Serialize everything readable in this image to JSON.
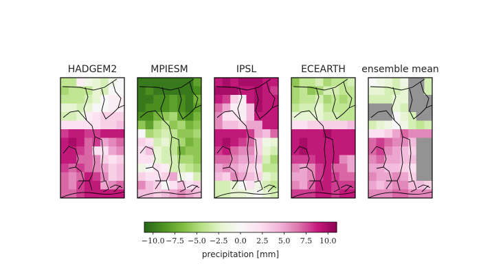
{
  "chart_data": {
    "type": "heatmap",
    "grid": {
      "rows": 14,
      "cols": 8
    },
    "panels": [
      {
        "title": "HADGEM2",
        "values": [
          [
            -4,
            -4,
            1,
            -1,
            -2,
            -3,
            -1,
            0
          ],
          [
            -5,
            -4,
            -4,
            -4,
            -2,
            -3,
            0,
            0
          ],
          [
            -4,
            -4,
            -4,
            -3,
            -2,
            0,
            1,
            1
          ],
          [
            -2,
            -2,
            -3,
            -2,
            0,
            0,
            1,
            1
          ],
          [
            -3,
            -3,
            -2,
            1,
            2,
            3,
            3,
            3
          ],
          [
            2,
            2,
            2,
            2,
            2,
            3,
            3,
            4
          ],
          [
            8,
            9,
            9,
            8,
            8,
            9,
            9,
            9
          ],
          [
            9,
            10,
            9,
            7,
            8,
            5,
            6,
            7
          ],
          [
            9,
            9,
            8,
            7,
            2,
            2,
            5,
            6
          ],
          [
            9,
            9,
            7,
            7,
            6,
            3,
            2,
            3
          ],
          [
            8,
            7,
            8,
            7,
            6,
            5,
            3,
            4
          ],
          [
            7,
            6,
            7,
            9,
            8,
            6,
            3,
            4
          ],
          [
            7,
            6,
            8,
            9,
            9,
            5,
            6,
            7
          ],
          [
            7,
            7,
            8,
            9,
            9,
            9,
            9,
            9
          ]
        ]
      },
      {
        "title": "MPIESM",
        "values": [
          [
            -10,
            -10,
            -10,
            -10,
            -10,
            -10,
            -10,
            -8
          ],
          [
            -10,
            -9,
            -10,
            -10,
            -10,
            -10,
            -10,
            -9
          ],
          [
            -10,
            -10,
            -9,
            -9,
            -8,
            -9,
            -10,
            -7
          ],
          [
            -10,
            -9,
            -9,
            -9,
            -8,
            -9,
            -10,
            -8
          ],
          [
            -9,
            -9,
            -7,
            -6,
            -5,
            -8,
            -9,
            -7
          ],
          [
            -6,
            -8,
            -5,
            -4,
            -6,
            -5,
            -7,
            -6
          ],
          [
            0,
            -5,
            -4,
            -3,
            -4,
            -6,
            -6,
            -5
          ],
          [
            3,
            2,
            -3,
            -2,
            -4,
            -5,
            -7,
            -6
          ],
          [
            2,
            4,
            -2,
            -3,
            -4,
            -7,
            -6,
            -6
          ],
          [
            2,
            2,
            -2,
            -3,
            -3,
            -5,
            -5,
            -6
          ],
          [
            -1,
            0,
            2,
            1,
            -3,
            -3,
            -4,
            -5
          ],
          [
            3,
            2,
            2,
            3,
            5,
            -1,
            0,
            -3
          ],
          [
            6,
            4,
            3,
            0,
            2,
            4,
            2,
            3
          ],
          [
            4,
            4,
            3,
            4,
            5,
            6,
            5,
            4
          ]
        ]
      },
      {
        "title": "IPSL",
        "values": [
          [
            9,
            10,
            9,
            10,
            10,
            10,
            9,
            9
          ],
          [
            10,
            10,
            10,
            9,
            9,
            10,
            9,
            8
          ],
          [
            9,
            8,
            3,
            1,
            9,
            10,
            9,
            9
          ],
          [
            7,
            5,
            1,
            1,
            4,
            10,
            9,
            9
          ],
          [
            6,
            2,
            2,
            1,
            4,
            9,
            9,
            9
          ],
          [
            6,
            4,
            4,
            3,
            5,
            5,
            9,
            9
          ],
          [
            9,
            9,
            9,
            9,
            8,
            5,
            4,
            7
          ],
          [
            9,
            10,
            9,
            8,
            7,
            3,
            -1,
            -2
          ],
          [
            8,
            9,
            7,
            6,
            6,
            3,
            -2,
            -3
          ],
          [
            7,
            7,
            6,
            5,
            5,
            4,
            -3,
            -5
          ],
          [
            5,
            6,
            5,
            4,
            3,
            2,
            -4,
            -4
          ],
          [
            4,
            3,
            6,
            5,
            4,
            3,
            -2,
            -3
          ],
          [
            -3,
            -3,
            -2,
            0,
            2,
            -1,
            -3,
            -4
          ],
          [
            -3,
            -3,
            -2,
            -2,
            -1,
            0,
            -2,
            -3
          ]
        ]
      },
      {
        "title": "ECEARTH",
        "values": [
          [
            -6,
            -4,
            -4,
            -3,
            -5,
            -4,
            -4,
            -3
          ],
          [
            -5,
            -4,
            -6,
            -5,
            -3,
            -3,
            -4,
            -4
          ],
          [
            -5,
            -4,
            -4,
            -3,
            -5,
            -4,
            -5,
            -4
          ],
          [
            -4,
            -3,
            -3,
            -2,
            -4,
            -4,
            -4,
            -4
          ],
          [
            -2,
            -2,
            -2,
            -2,
            -3,
            -3,
            -4,
            -4
          ],
          [
            2,
            2,
            3,
            3,
            3,
            3,
            3,
            4
          ],
          [
            9,
            9,
            9,
            9,
            10,
            9,
            9,
            9
          ],
          [
            9,
            10,
            9,
            9,
            9,
            9,
            9,
            9
          ],
          [
            9,
            10,
            9,
            9,
            9,
            9,
            9,
            9
          ],
          [
            8,
            8,
            8,
            9,
            9,
            9,
            6,
            5
          ],
          [
            6,
            5,
            6,
            8,
            9,
            7,
            7,
            5
          ],
          [
            5,
            5,
            6,
            8,
            9,
            8,
            7,
            7
          ],
          [
            6,
            5,
            7,
            9,
            9,
            8,
            8,
            8
          ],
          [
            8,
            8,
            8,
            9,
            9,
            8,
            9,
            9
          ]
        ]
      },
      {
        "title": "ensemble mean",
        "values": [
          [
            0,
            -1,
            -2,
            -3,
            -1,
            null,
            null,
            -3
          ],
          [
            -2,
            -2,
            -3,
            -3,
            -2,
            null,
            null,
            -3
          ],
          [
            -3,
            -3,
            -3,
            -2,
            -2,
            null,
            null,
            null
          ],
          [
            null,
            null,
            null,
            -2,
            -3,
            null,
            null,
            null
          ],
          [
            null,
            null,
            null,
            0,
            -2,
            -3,
            null,
            null
          ],
          [
            -3,
            -2,
            -1,
            0,
            -1,
            -3,
            -4,
            -3
          ],
          [
            2,
            2,
            3,
            5,
            7,
            6,
            6,
            6
          ],
          [
            7,
            8,
            7,
            6,
            6,
            4,
            null,
            null
          ],
          [
            7,
            8,
            6,
            5,
            4,
            3,
            null,
            null
          ],
          [
            6,
            7,
            5,
            5,
            4,
            4,
            null,
            null
          ],
          [
            5,
            5,
            4,
            4,
            3,
            2,
            null,
            null
          ],
          [
            6,
            5,
            5,
            6,
            5,
            3,
            null,
            null
          ],
          [
            5,
            4,
            5,
            6,
            6,
            4,
            4,
            3
          ],
          [
            6,
            6,
            6,
            7,
            7,
            6,
            6,
            6
          ]
        ]
      }
    ],
    "colorbar": {
      "colormap": "PiYG_r",
      "vmin": -11,
      "vmax": 11,
      "ticks": [
        -10.0,
        -7.5,
        -5.0,
        -2.5,
        0.0,
        2.5,
        5.0,
        7.5,
        10.0
      ],
      "tick_labels": [
        "−10.0",
        "−7.5",
        "−5.0",
        "−2.5",
        "0.0",
        "2.5",
        "5.0",
        "7.5",
        "10.0"
      ],
      "label": "precipitation [mm]"
    },
    "masked_color": "#939393"
  }
}
